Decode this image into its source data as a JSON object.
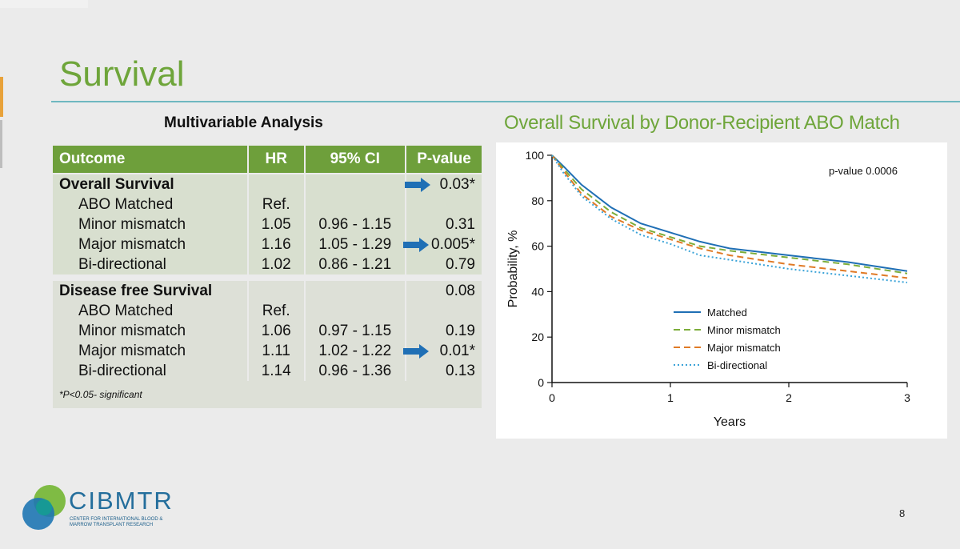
{
  "slide": {
    "title": "Survival",
    "page_number": "8",
    "logo_name": "CIBMTR",
    "logo_tagline": "CENTER FOR INTERNATIONAL BLOOD & MARROW TRANSPLANT RESEARCH"
  },
  "table": {
    "heading": "Multivariable Analysis",
    "header": [
      "Outcome",
      "HR",
      "95% CI",
      "P-value"
    ],
    "groups": [
      {
        "title": "Overall Survival",
        "pvalue": "0.03*",
        "rows": [
          {
            "label": "ABO Matched",
            "hr": "Ref.",
            "ci": "",
            "p": ""
          },
          {
            "label": "Minor mismatch",
            "hr": "1.05",
            "ci": "0.96 - 1.15",
            "p": "0.31"
          },
          {
            "label": "Major mismatch",
            "hr": "1.16",
            "ci": "1.05 - 1.29",
            "p": "0.005*"
          },
          {
            "label": "Bi-directional",
            "hr": "1.02",
            "ci": "0.86 - 1.21",
            "p": "0.79"
          }
        ]
      },
      {
        "title": "Disease free Survival",
        "pvalue": "0.08",
        "rows": [
          {
            "label": "ABO Matched",
            "hr": "Ref.",
            "ci": "",
            "p": ""
          },
          {
            "label": "Minor mismatch",
            "hr": "1.06",
            "ci": "0.97 - 1.15",
            "p": "0.19"
          },
          {
            "label": "Major mismatch",
            "hr": "1.11",
            "ci": "1.02 - 1.22",
            "p": "0.01*"
          },
          {
            "label": "Bi-directional",
            "hr": "1.14",
            "ci": "0.96 - 1.36",
            "p": "0.13"
          }
        ]
      }
    ],
    "footnote": "*P<0.05- significant"
  },
  "colors": {
    "accent_green": "#6ea53a",
    "arrow_blue": "#1f6fb5"
  },
  "chart_data": {
    "type": "line",
    "title": "Overall Survival by Donor-Recipient ABO Match",
    "xlabel": "Years",
    "ylabel": "Probability, %",
    "xlim": [
      0,
      3
    ],
    "ylim": [
      0,
      100
    ],
    "xticks": [
      0,
      1,
      2,
      3
    ],
    "yticks": [
      0,
      20,
      40,
      60,
      80,
      100
    ],
    "annotation": "p-value 0.0006",
    "legend_position": "bottom-center",
    "grid": false,
    "series": [
      {
        "name": "Matched",
        "style": "solid",
        "color": "#1f6fb5",
        "x": [
          0,
          0.1,
          0.25,
          0.5,
          0.75,
          1.0,
          1.25,
          1.5,
          2.0,
          2.5,
          3.0
        ],
        "y": [
          100,
          95,
          87,
          77,
          70,
          66,
          62,
          59,
          56,
          53,
          49
        ]
      },
      {
        "name": "Minor mismatch",
        "style": "dashed",
        "color": "#7cad3a",
        "x": [
          0,
          0.1,
          0.25,
          0.5,
          0.75,
          1.0,
          1.25,
          1.5,
          2.0,
          2.5,
          3.0
        ],
        "y": [
          100,
          94,
          85,
          75,
          68,
          64,
          60,
          58,
          55,
          52,
          48
        ]
      },
      {
        "name": "Major mismatch",
        "style": "dashed",
        "color": "#e07a26",
        "x": [
          0,
          0.1,
          0.25,
          0.5,
          0.75,
          1.0,
          1.25,
          1.5,
          2.0,
          2.5,
          3.0
        ],
        "y": [
          100,
          93,
          83,
          73,
          67,
          63,
          59,
          56,
          52,
          49,
          46
        ]
      },
      {
        "name": "Bi-directional",
        "style": "dotted",
        "color": "#3aa3d8",
        "x": [
          0,
          0.1,
          0.25,
          0.5,
          0.75,
          1.0,
          1.25,
          1.5,
          2.0,
          2.5,
          3.0
        ],
        "y": [
          100,
          92,
          82,
          72,
          65,
          61,
          56,
          54,
          50,
          47,
          44
        ]
      }
    ]
  }
}
